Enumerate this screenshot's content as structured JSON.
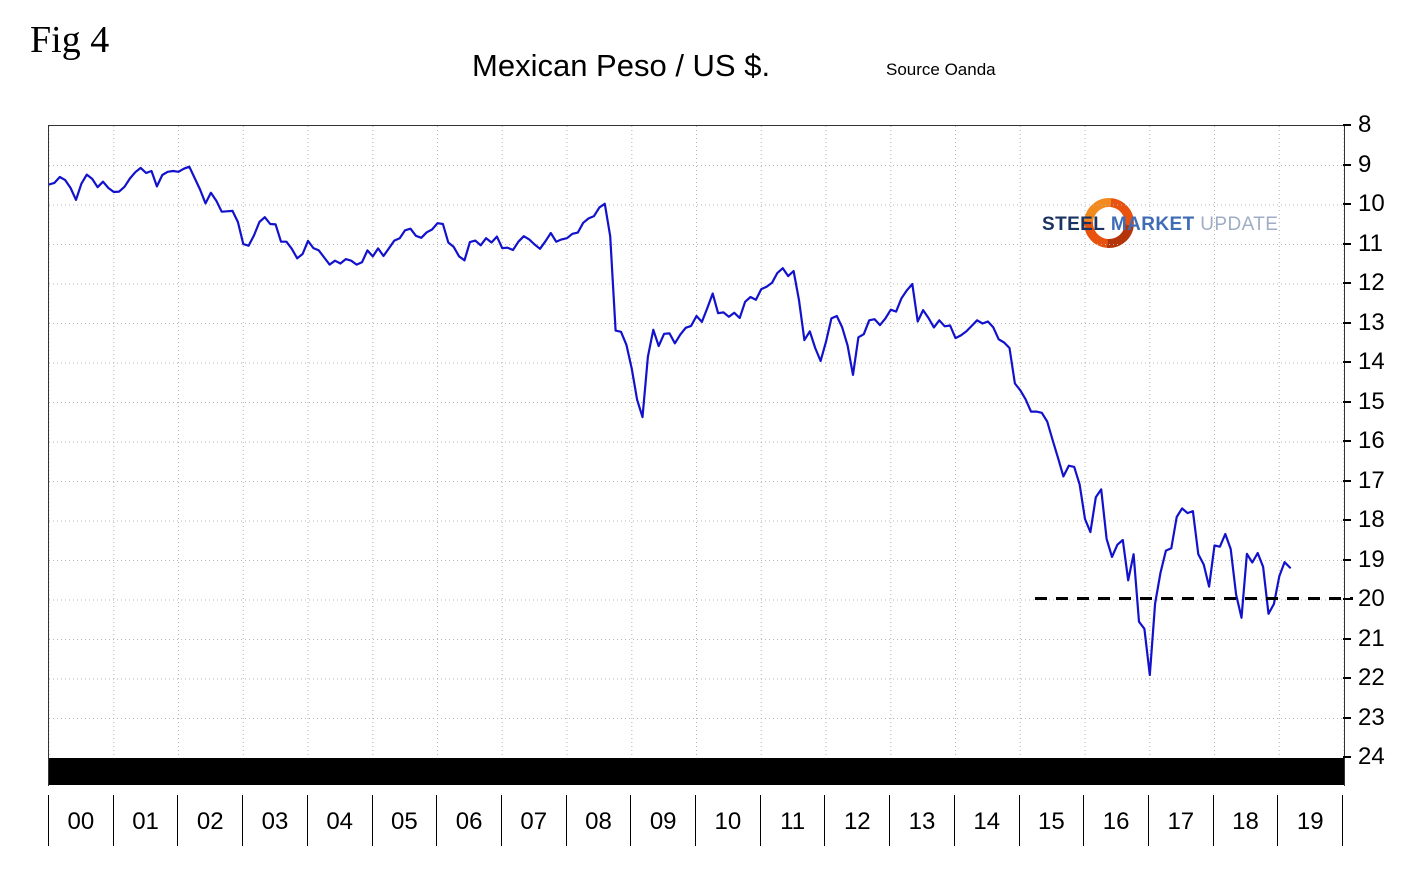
{
  "figure": {
    "label": "Fig 4"
  },
  "header": {
    "title": "Mexican Peso / US $.",
    "source": "Source Oanda"
  },
  "logo": {
    "steel": "STEEL",
    "market": "MARKET",
    "update": "UPDATE",
    "ring_color": "#e8520e"
  },
  "chart_data": {
    "type": "line",
    "title": "Mexican Peso / US $",
    "source": "Oanda",
    "line_color": "#1212cc",
    "grid": "dotted light gray, vertical per year and horizontal per unit",
    "y_axis": {
      "min": 8,
      "max": 24,
      "direction": "inverted (8 at top, 24 at bottom)",
      "side": "right",
      "ticks": [
        8,
        9,
        10,
        11,
        12,
        13,
        14,
        15,
        16,
        17,
        18,
        19,
        20,
        21,
        22,
        23,
        24
      ]
    },
    "x_axis": {
      "start_year": 2000,
      "labels": [
        "00",
        "01",
        "02",
        "03",
        "04",
        "05",
        "06",
        "07",
        "08",
        "09",
        "10",
        "11",
        "12",
        "13",
        "14",
        "15",
        "16",
        "17",
        "18",
        "19"
      ]
    },
    "support_line": {
      "value": 20,
      "style": "dashed",
      "color": "#000000",
      "x_start": 15.25,
      "x_end": 20
    },
    "bottom_bar": {
      "color": "#000000",
      "from_value": 24,
      "note": "solid black band at base of plot"
    },
    "series": {
      "name": "USD/MXN exchange rate",
      "unit": "MXN per USD",
      "resolution": "monthly (approx, read from chart)",
      "monthly_by_year": [
        [
          9.48,
          9.44,
          9.29,
          9.37,
          9.57,
          9.87,
          9.46,
          9.23,
          9.34,
          9.55,
          9.41,
          9.57
        ],
        [
          9.67,
          9.66,
          9.54,
          9.33,
          9.17,
          9.06,
          9.19,
          9.14,
          9.53,
          9.24,
          9.16,
          9.14
        ],
        [
          9.16,
          9.08,
          9.03,
          9.32,
          9.61,
          9.96,
          9.69,
          9.89,
          10.17,
          10.16,
          10.15,
          10.43
        ],
        [
          10.99,
          11.03,
          10.77,
          10.43,
          10.31,
          10.48,
          10.49,
          10.93,
          10.93,
          11.11,
          11.35,
          11.24
        ],
        [
          10.91,
          11.09,
          11.15,
          11.33,
          11.51,
          11.41,
          11.48,
          11.37,
          11.41,
          11.51,
          11.45,
          11.15
        ],
        [
          11.3,
          11.1,
          11.29,
          11.1,
          10.9,
          10.84,
          10.64,
          10.6,
          10.78,
          10.83,
          10.69,
          10.62
        ],
        [
          10.46,
          10.48,
          10.95,
          11.06,
          11.3,
          11.4,
          10.94,
          10.9,
          11.02,
          10.84,
          10.95,
          10.8
        ],
        [
          11.09,
          11.08,
          11.14,
          10.93,
          10.79,
          10.87,
          11.0,
          11.11,
          10.92,
          10.71,
          10.93,
          10.87
        ],
        [
          10.84,
          10.73,
          10.7,
          10.45,
          10.34,
          10.28,
          10.06,
          9.97,
          10.79,
          13.18,
          13.21,
          13.54
        ],
        [
          14.15,
          14.93,
          15.37,
          13.84,
          13.16,
          13.57,
          13.26,
          13.25,
          13.5,
          13.28,
          13.11,
          13.06
        ],
        [
          12.81,
          12.96,
          12.61,
          12.24,
          12.74,
          12.72,
          12.83,
          12.73,
          12.86,
          12.45,
          12.33,
          12.4
        ],
        [
          12.13,
          12.07,
          11.97,
          11.72,
          11.6,
          11.8,
          11.67,
          12.41,
          13.42,
          13.2,
          13.62,
          13.95
        ],
        [
          13.46,
          12.87,
          12.81,
          13.1,
          13.56,
          14.3,
          13.35,
          13.27,
          12.92,
          12.89,
          13.04,
          12.87
        ],
        [
          12.65,
          12.7,
          12.36,
          12.16,
          12.0,
          12.95,
          12.66,
          12.86,
          13.1,
          12.92,
          13.07,
          13.05
        ],
        [
          13.37,
          13.3,
          13.2,
          13.06,
          12.92,
          13.0,
          12.95,
          13.1,
          13.4,
          13.48,
          13.62,
          14.52
        ],
        [
          14.69,
          14.92,
          15.23,
          15.23,
          15.26,
          15.48,
          15.95,
          16.4,
          16.87,
          16.6,
          16.63,
          17.07
        ],
        [
          17.95,
          18.28,
          17.4,
          17.2,
          18.45,
          18.91,
          18.6,
          18.48,
          19.5,
          18.84,
          20.55,
          20.73
        ],
        [
          21.9,
          20.09,
          19.31,
          18.75,
          18.69,
          17.9,
          17.68,
          17.8,
          17.75,
          18.84,
          19.1,
          19.66
        ],
        [
          18.62,
          18.65,
          18.33,
          18.71,
          19.86,
          20.45,
          18.83,
          19.05,
          18.81,
          19.16,
          20.35,
          20.1
        ],
        [
          19.4,
          19.04,
          19.18
        ]
      ]
    }
  }
}
